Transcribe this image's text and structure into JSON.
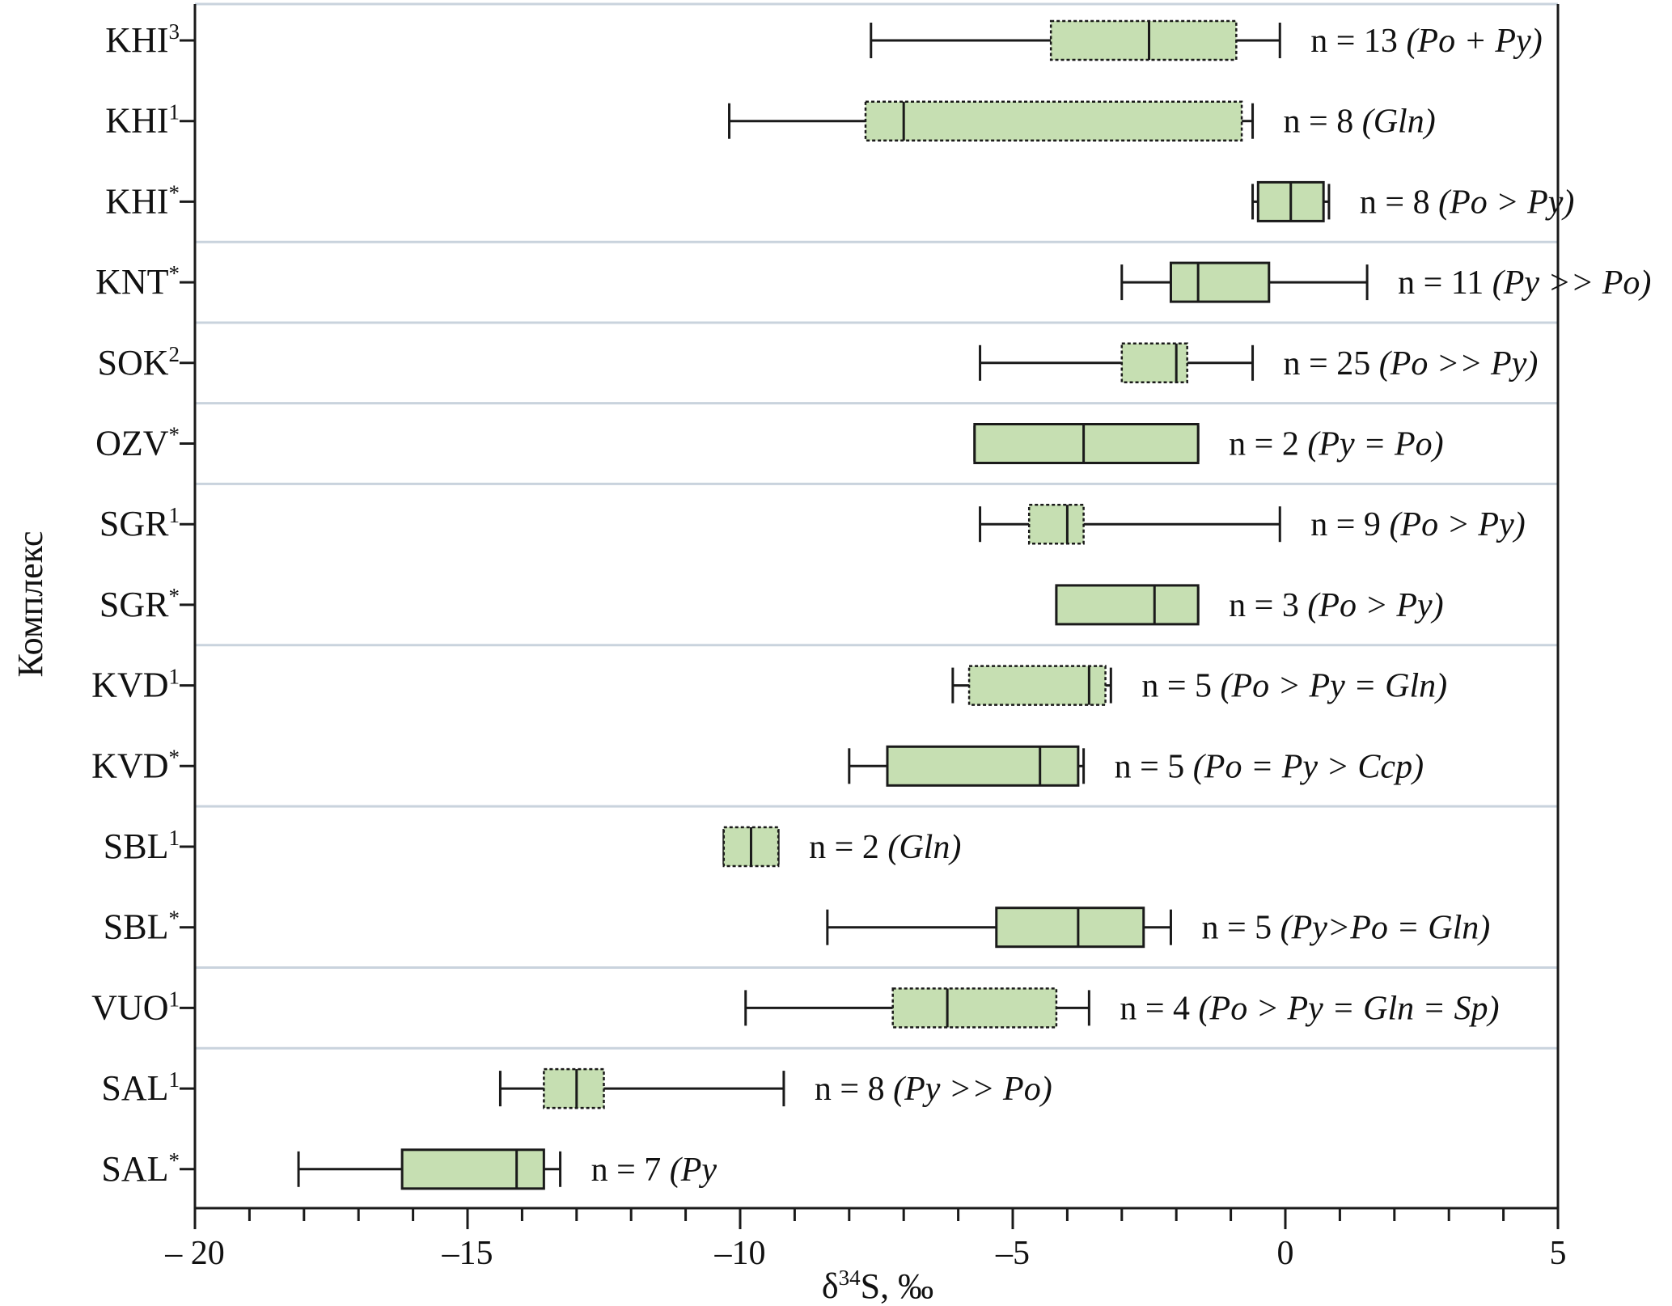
{
  "chart_data": {
    "type": "boxplot",
    "orientation": "horizontal",
    "xlabel": "δ34S, ‰",
    "ylabel": "Комплекс",
    "xlim": [
      -20,
      5
    ],
    "x_ticks": [
      -20,
      -15,
      -10,
      -5,
      0,
      5
    ],
    "x_tick_labels": [
      "– 20",
      "–15",
      "–10",
      "–5",
      "0",
      "5"
    ],
    "grid": false,
    "group_separators_after_rows": [
      3,
      4,
      5,
      6,
      8,
      10,
      12,
      13
    ],
    "categories": [
      {
        "base": "KHI",
        "sup": "3"
      },
      {
        "base": "KHI",
        "sup": "1"
      },
      {
        "base": "KHI",
        "sup": "*"
      },
      {
        "base": "KNT",
        "sup": "*"
      },
      {
        "base": "SOK",
        "sup": "2"
      },
      {
        "base": "OZV",
        "sup": "*"
      },
      {
        "base": "SGR",
        "sup": "1"
      },
      {
        "base": "SGR",
        "sup": "*"
      },
      {
        "base": "KVD",
        "sup": "1"
      },
      {
        "base": "KVD",
        "sup": "*"
      },
      {
        "base": "SBL",
        "sup": "1"
      },
      {
        "base": "SBL",
        "sup": "*"
      },
      {
        "base": "VUO",
        "sup": "1"
      },
      {
        "base": "SAL",
        "sup": "1"
      },
      {
        "base": "SAL",
        "sup": "*"
      }
    ],
    "boxes": [
      {
        "min": -7.6,
        "q1": -4.3,
        "median": -2.5,
        "q3": -0.9,
        "max": -0.1,
        "dashed": true,
        "n_text": "n = 13 ",
        "minerals": "(Po + Py)"
      },
      {
        "min": -10.2,
        "q1": -7.7,
        "median": -7.0,
        "q3": -0.8,
        "max": -0.6,
        "dashed": true,
        "n_text": "n = 8 ",
        "minerals": "(Gln)"
      },
      {
        "min": -0.6,
        "q1": -0.5,
        "median": 0.1,
        "q3": 0.7,
        "max": 0.8,
        "dashed": false,
        "n_text": "n = 8 ",
        "minerals": "(Po > Py)"
      },
      {
        "min": -3.0,
        "q1": -2.1,
        "median": -1.6,
        "q3": -0.3,
        "max": 1.5,
        "dashed": false,
        "n_text": "n = 11 ",
        "minerals": "(Py >> Po)"
      },
      {
        "min": -5.6,
        "q1": -3.0,
        "median": -2.0,
        "q3": -1.8,
        "max": -0.6,
        "dashed": true,
        "n_text": "n = 25 ",
        "minerals": "(Po >> Py)"
      },
      {
        "min": -5.7,
        "q1": -5.7,
        "median": -3.7,
        "q3": -1.6,
        "max": -1.6,
        "dashed": false,
        "n_text": "n = 2 ",
        "minerals": "(Py = Po)"
      },
      {
        "min": -5.6,
        "q1": -4.7,
        "median": -4.0,
        "q3": -3.7,
        "max": -0.1,
        "dashed": true,
        "n_text": "n = 9 ",
        "minerals": "(Po > Py)"
      },
      {
        "min": -4.2,
        "q1": -4.2,
        "median": -2.4,
        "q3": -1.6,
        "max": -1.6,
        "dashed": false,
        "n_text": "n = 3 ",
        "minerals": "(Po > Py)"
      },
      {
        "min": -6.1,
        "q1": -5.8,
        "median": -3.6,
        "q3": -3.3,
        "max": -3.2,
        "dashed": true,
        "n_text": "n = 5 ",
        "minerals": "(Po > Py = Gln)"
      },
      {
        "min": -8.0,
        "q1": -7.3,
        "median": -4.5,
        "q3": -3.8,
        "max": -3.7,
        "dashed": false,
        "n_text": "n = 5 ",
        "minerals": "(Po = Py > Ccp)"
      },
      {
        "min": -10.3,
        "q1": -10.3,
        "median": -9.8,
        "q3": -9.3,
        "max": -9.3,
        "dashed": true,
        "n_text": "n = 2 ",
        "minerals": "(Gln)"
      },
      {
        "min": -8.4,
        "q1": -5.3,
        "median": -3.8,
        "q3": -2.6,
        "max": -2.1,
        "dashed": false,
        "n_text": "n = 5 ",
        "minerals": "(Py>Po = Gln)"
      },
      {
        "min": -9.9,
        "q1": -7.2,
        "median": -6.2,
        "q3": -4.2,
        "max": -3.6,
        "dashed": true,
        "n_text": "n = 4 ",
        "minerals": "(Po > Py = Gln = Sp)"
      },
      {
        "min": -14.4,
        "q1": -13.6,
        "median": -13.0,
        "q3": -12.5,
        "max": -9.2,
        "dashed": true,
        "n_text": "n = 8 ",
        "minerals": "(Py >> Po)"
      },
      {
        "min": -18.1,
        "q1": -16.2,
        "median": -14.1,
        "q3": -13.6,
        "max": -13.3,
        "dashed": false,
        "n_text": "n = 7 ",
        "minerals": "(Py"
      }
    ],
    "colors": {
      "box_fill": "#c6dfb2",
      "stroke": "#1a1a1a",
      "separator": "#c9d3dd"
    }
  }
}
